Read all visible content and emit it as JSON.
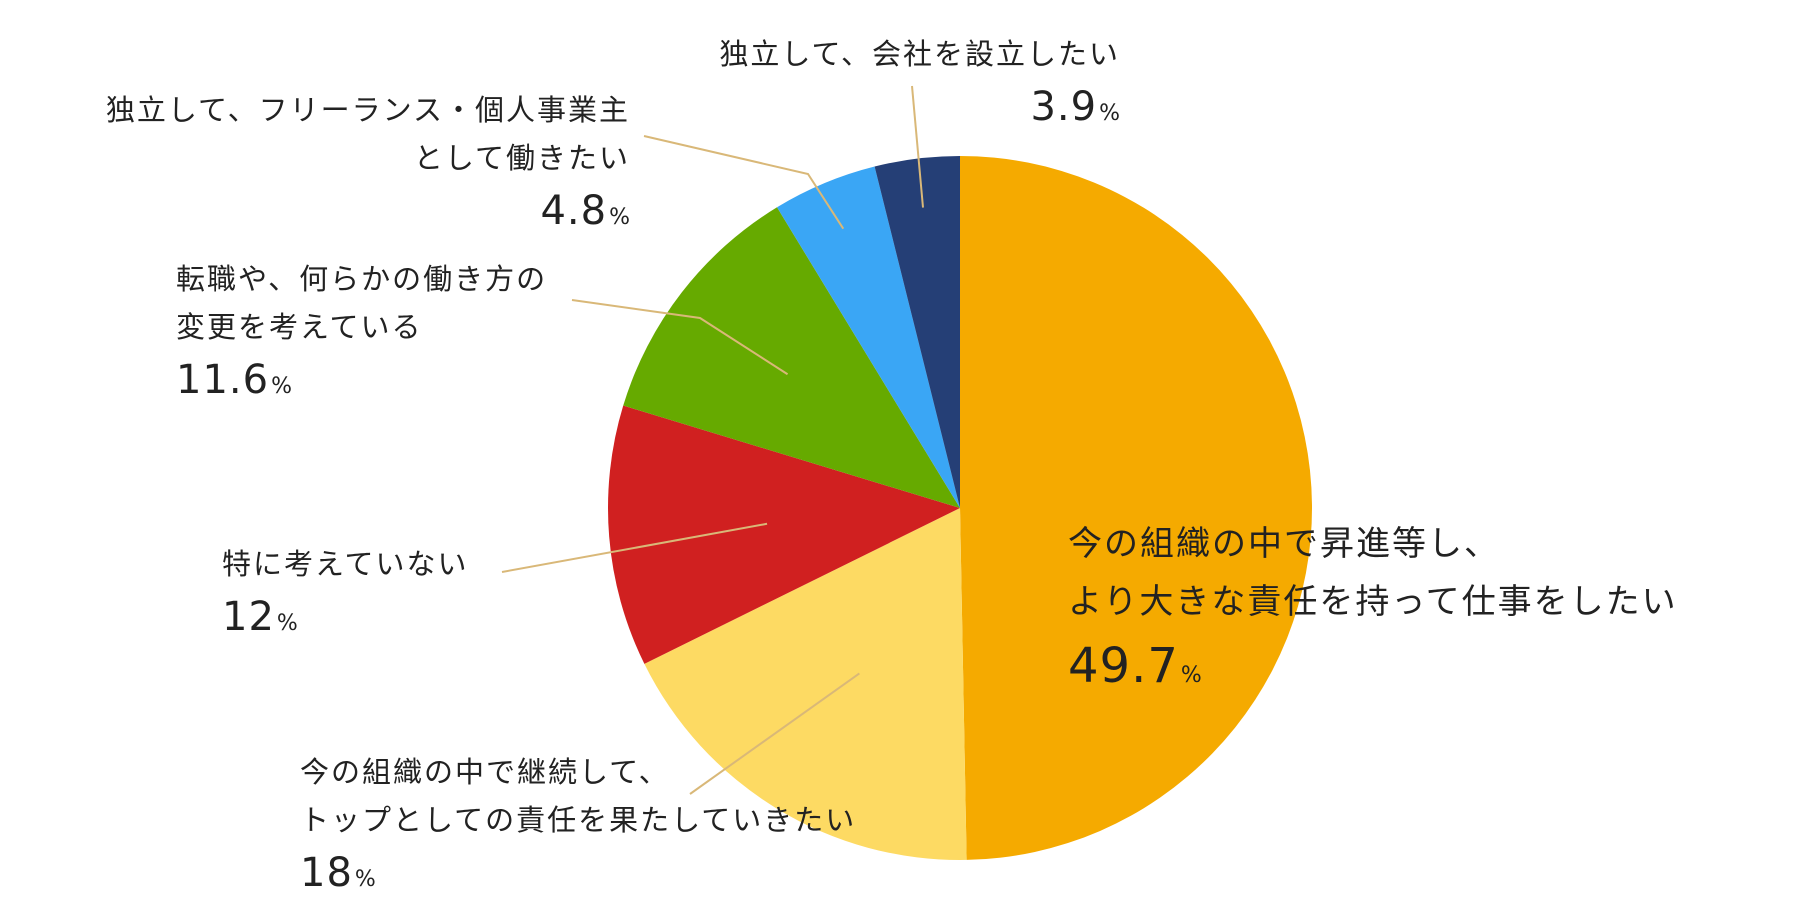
{
  "chart_data": {
    "type": "pie",
    "unit": "%",
    "start_angle_deg": 0,
    "direction": "clockwise",
    "slices": [
      {
        "lines": [
          "今の組織の中で昇進等し、",
          "より大きな責任を持って仕事をしたい"
        ],
        "value": 49.7,
        "display": "49.7",
        "color": "#F5AA00"
      },
      {
        "lines": [
          "今の組織の中で継続して、",
          "トップとしての責任を果たしていきたい"
        ],
        "value": 18,
        "display": "18",
        "color": "#FDDA63"
      },
      {
        "lines": [
          "特に考えていない"
        ],
        "value": 12,
        "display": "12",
        "color": "#D02020"
      },
      {
        "lines": [
          "転職や、何らかの働き方の",
          "変更を考えている"
        ],
        "value": 11.6,
        "display": "11.6",
        "color": "#66AA00"
      },
      {
        "lines": [
          "独立して、フリーランス・個人事業主",
          "として働きたい"
        ],
        "value": 4.8,
        "display": "4.8",
        "color": "#3AA6F5"
      },
      {
        "lines": [
          "独立して、会社を設立したい"
        ],
        "value": 3.9,
        "display": "3.9",
        "color": "#253F76"
      }
    ],
    "leader_line_color": "#D9B878"
  }
}
